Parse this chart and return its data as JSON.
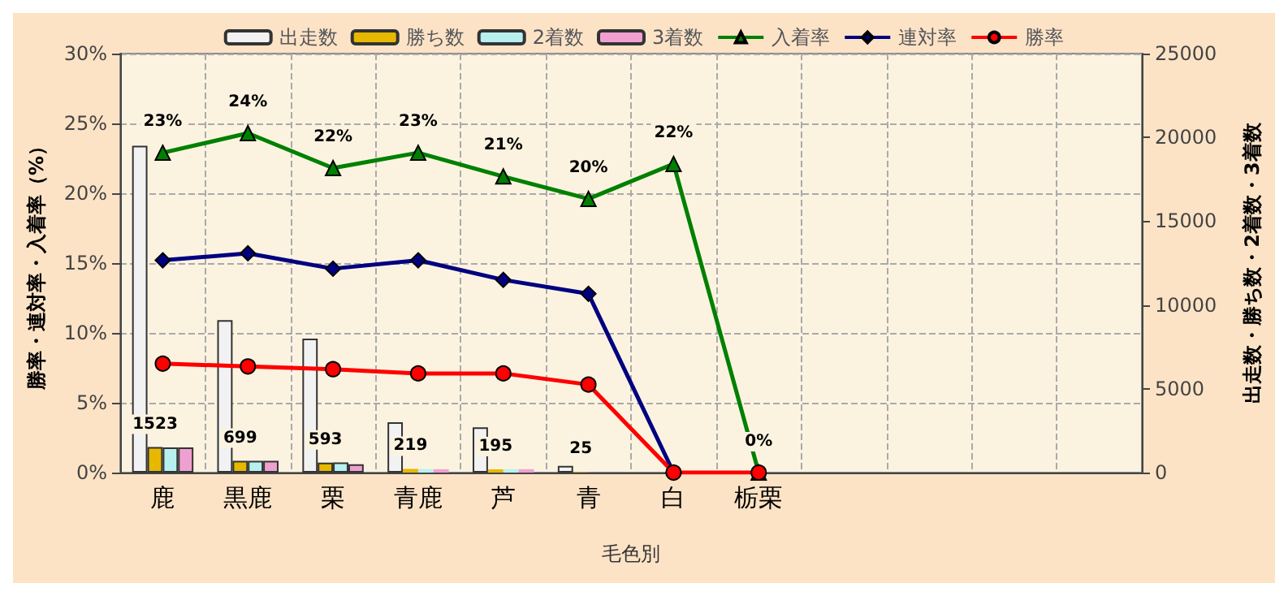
{
  "chart_data": {
    "type": "bar",
    "xlabel": "毛色別",
    "ylabel": "勝率・連対率・入着率（%）",
    "y2label": "出走数・勝ち数・2着数・3着数",
    "categories": [
      "鹿",
      "黒鹿",
      "栗",
      "青鹿",
      "芦",
      "青",
      "白",
      "栃栗",
      null,
      null,
      null,
      null
    ],
    "series": [
      {
        "name": "出走数",
        "axis": "y2",
        "color": "#f2f2f2",
        "values": [
          19500,
          9100,
          8000,
          3000,
          2700,
          400,
          null,
          null,
          null,
          null,
          null,
          null
        ]
      },
      {
        "name": "勝ち数",
        "axis": "y2",
        "color": "#e6b800",
        "values": [
          1523,
          699,
          593,
          219,
          195,
          25,
          null,
          null,
          null,
          null,
          null,
          null
        ],
        "value_labels": [
          "1523",
          "699",
          "593",
          "219",
          "195",
          "25",
          null,
          null,
          null,
          null,
          null,
          null
        ]
      },
      {
        "name": "2着数",
        "axis": "y2",
        "color": "#b8f0f0",
        "values": [
          1500,
          700,
          600,
          200,
          200,
          null,
          null,
          null,
          null,
          null,
          null,
          null
        ]
      },
      {
        "name": "3着数",
        "axis": "y2",
        "color": "#f0a0d0",
        "values": [
          1500,
          700,
          500,
          200,
          200,
          null,
          null,
          null,
          null,
          null,
          null,
          null
        ]
      },
      {
        "name": "入着率",
        "type": "line",
        "color": "#008000",
        "marker": "triangle",
        "values": [
          22.9,
          24.3,
          21.8,
          22.9,
          21.2,
          19.6,
          22.1,
          0,
          null,
          null,
          null,
          null
        ],
        "value_labels": [
          "23%",
          "24%",
          "22%",
          "23%",
          "21%",
          "20%",
          "22%",
          "0%",
          null,
          null,
          null,
          null
        ]
      },
      {
        "name": "連対率",
        "type": "line",
        "color": "#000080",
        "marker": "diamond",
        "values": [
          15.2,
          15.7,
          14.6,
          15.2,
          13.8,
          12.8,
          0,
          null,
          null,
          null,
          null,
          null
        ]
      },
      {
        "name": "勝率",
        "type": "line",
        "color": "#ff0000",
        "marker": "circle",
        "values": [
          7.8,
          7.6,
          7.4,
          7.1,
          7.1,
          6.3,
          0,
          0,
          null,
          null,
          null,
          null
        ]
      }
    ],
    "ylim": [
      0,
      30
    ],
    "yticks": [
      {
        "value": 0,
        "label": "0%"
      },
      {
        "value": 5,
        "label": "5%"
      },
      {
        "value": 10,
        "label": "10%"
      },
      {
        "value": 15,
        "label": "15%"
      },
      {
        "value": 20,
        "label": "20%"
      },
      {
        "value": 25,
        "label": "25%"
      },
      {
        "value": 30,
        "label": "30%"
      }
    ],
    "y2lim": [
      0,
      25000
    ],
    "y2ticks": [
      0,
      5000,
      10000,
      15000,
      20000,
      25000
    ],
    "grid": true,
    "legend": "top"
  }
}
